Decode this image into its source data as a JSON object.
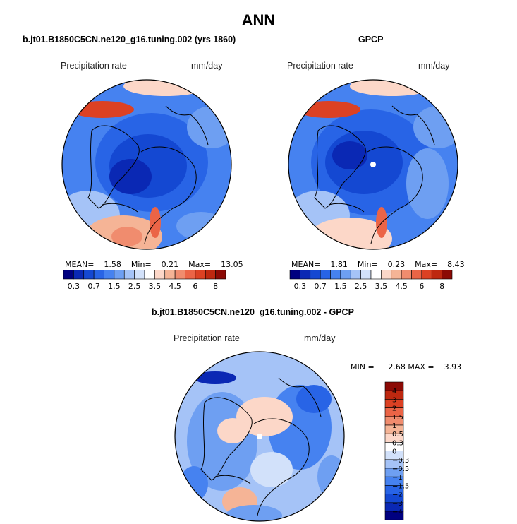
{
  "title": "ANN",
  "colors": {
    "scale": [
      "#000080",
      "#0a28b4",
      "#1448d2",
      "#2864e6",
      "#4682f0",
      "#6e9ff2",
      "#a5c3f7",
      "#d2e1fa",
      "#ffffff",
      "#fcd7c8",
      "#f5b496",
      "#f08c6e",
      "#eb6446",
      "#dc4123",
      "#be2810",
      "#8c0a05"
    ],
    "diff_scale": [
      "#000080",
      "#0a28b4",
      "#1448d2",
      "#2864e6",
      "#4682f0",
      "#6e9ff2",
      "#a5c3f7",
      "#d2e1fa",
      "#ffffff",
      "#fcd7c8",
      "#f5b496",
      "#f08c6e",
      "#eb6446",
      "#dc4123",
      "#be2810",
      "#8c0a05"
    ],
    "coast": "#000000",
    "pole_marker": "#ffffff"
  },
  "panels": [
    {
      "subtitle": "b.jt01.B1850C5CN.ne120_g16.tuning.002 (yrs 1860)",
      "variable": "Precipitation rate",
      "units": "mm/day",
      "mean_label": "MEAN=",
      "mean": "1.58",
      "min_label": "Min=",
      "min": "0.21",
      "max_label": "Max=",
      "max": "13.05"
    },
    {
      "subtitle": "GPCP",
      "variable": "Precipitation rate",
      "units": "mm/day",
      "mean_label": "MEAN=",
      "mean": "1.81",
      "min_label": "Min=",
      "min": "0.23",
      "max_label": "Max=",
      "max": "8.43"
    }
  ],
  "colorbar_ticks": [
    "0.3",
    "0.7",
    "1.5",
    "2.5",
    "3.5",
    "4.5",
    "6",
    "8"
  ],
  "diff": {
    "subtitle": "b.jt01.B1850C5CN.ne120_g16.tuning.002 - GPCP",
    "variable": "Precipitation rate",
    "units": "mm/day",
    "minmax_text": "MIN =   −2.68 MAX =    3.93",
    "ticks": [
      "4",
      "3",
      "2",
      "1.5",
      "1",
      "0.5",
      "0.3",
      "0",
      "−0.3",
      "−0.5",
      "−1",
      "−1.5",
      "−2",
      "−3",
      "−4"
    ]
  },
  "chart_data": [
    {
      "type": "heatmap",
      "projection": "north polar stereographic",
      "title": "b.jt01.B1850C5CN.ne120_g16.tuning.002 (yrs 1860)",
      "variable": "Precipitation rate",
      "units": "mm/day",
      "levels": [
        0.3,
        0.7,
        1.5,
        2.5,
        3.5,
        4.5,
        6,
        8
      ],
      "stats": {
        "mean": 1.58,
        "min": 0.21,
        "max": 13.05
      }
    },
    {
      "type": "heatmap",
      "projection": "north polar stereographic",
      "title": "GPCP",
      "variable": "Precipitation rate",
      "units": "mm/day",
      "levels": [
        0.3,
        0.7,
        1.5,
        2.5,
        3.5,
        4.5,
        6,
        8
      ],
      "stats": {
        "mean": 1.81,
        "min": 0.23,
        "max": 8.43
      }
    },
    {
      "type": "heatmap",
      "projection": "north polar stereographic",
      "title": "b.jt01.B1850C5CN.ne120_g16.tuning.002 - GPCP",
      "variable": "Precipitation rate",
      "units": "mm/day",
      "levels": [
        -4,
        -3,
        -2,
        -1.5,
        -1,
        -0.5,
        -0.3,
        0,
        0.3,
        0.5,
        1,
        1.5,
        2,
        3,
        4
      ],
      "stats": {
        "min": -2.68,
        "max": 3.93
      }
    }
  ]
}
